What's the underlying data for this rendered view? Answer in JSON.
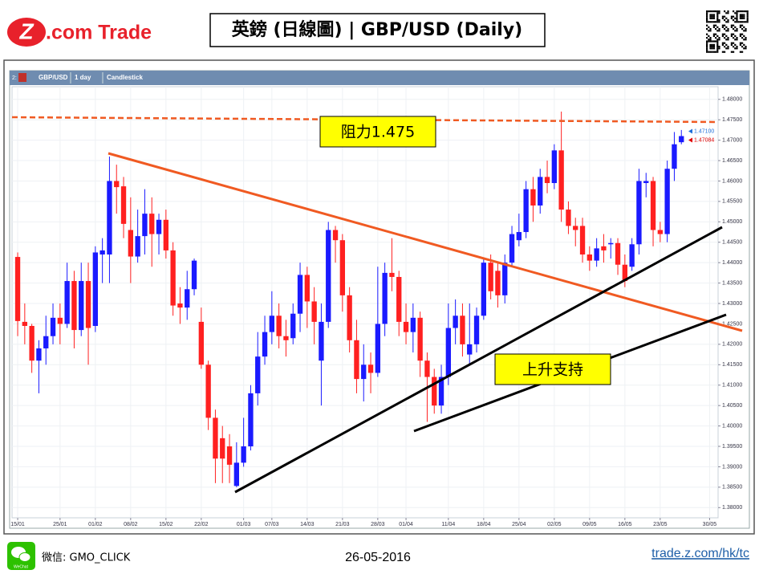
{
  "header": {
    "logo_mark": "Z",
    "logo_text": ".com Trade",
    "title": "英鎊 (日線圖) | GBP/USD (Daily)"
  },
  "chart_data": {
    "type": "candlestick",
    "toolbar": {
      "index": "2:",
      "symbol": "GBP/USD",
      "interval": "1 day",
      "style": "Candlestick"
    },
    "up_color": "#1a1aff",
    "down_color": "#ff2020",
    "grid": true,
    "xlim": [
      -0.8,
      99.2
    ],
    "xticks": [
      {
        "value": 0,
        "label": "15/01"
      },
      {
        "value": 6,
        "label": "25/01"
      },
      {
        "value": 11,
        "label": "01/02"
      },
      {
        "value": 16,
        "label": "08/02"
      },
      {
        "value": 21,
        "label": "15/02"
      },
      {
        "value": 26,
        "label": "22/02"
      },
      {
        "value": 32,
        "label": "01/03"
      },
      {
        "value": 36,
        "label": "07/03"
      },
      {
        "value": 41,
        "label": "14/03"
      },
      {
        "value": 46,
        "label": "21/03"
      },
      {
        "value": 51,
        "label": "28/03"
      },
      {
        "value": 55,
        "label": "01/04"
      },
      {
        "value": 61,
        "label": "11/04"
      },
      {
        "value": 66,
        "label": "18/04"
      },
      {
        "value": 71,
        "label": "25/04"
      },
      {
        "value": 76,
        "label": "02/05"
      },
      {
        "value": 81,
        "label": "09/05"
      },
      {
        "value": 86,
        "label": "16/05"
      },
      {
        "value": 91,
        "label": "23/05"
      },
      {
        "value": 98,
        "label": "30/05"
      }
    ],
    "ylim": [
      1.3775,
      1.4831
    ],
    "yticks": [
      {
        "value": 1.38,
        "label": "1.38000"
      },
      {
        "value": 1.385,
        "label": "1.38500"
      },
      {
        "value": 1.39,
        "label": "1.39000"
      },
      {
        "value": 1.395,
        "label": "1.39500"
      },
      {
        "value": 1.4,
        "label": "1.40000"
      },
      {
        "value": 1.405,
        "label": "1.40500"
      },
      {
        "value": 1.41,
        "label": "1.41000"
      },
      {
        "value": 1.415,
        "label": "1.41500"
      },
      {
        "value": 1.42,
        "label": "1.42000"
      },
      {
        "value": 1.425,
        "label": "1.42500"
      },
      {
        "value": 1.43,
        "label": "1.43000"
      },
      {
        "value": 1.435,
        "label": "1.43500"
      },
      {
        "value": 1.44,
        "label": "1.44000"
      },
      {
        "value": 1.445,
        "label": "1.44500"
      },
      {
        "value": 1.45,
        "label": "1.45000"
      },
      {
        "value": 1.455,
        "label": "1.45500"
      },
      {
        "value": 1.46,
        "label": "1.46000"
      },
      {
        "value": 1.465,
        "label": "1.46500"
      },
      {
        "value": 1.47,
        "label": "1.47000"
      },
      {
        "value": 1.475,
        "label": "1.47500"
      },
      {
        "value": 1.48,
        "label": "1.48000"
      }
    ],
    "open": [
      1.4414,
      1.4255,
      1.4245,
      1.416,
      1.419,
      1.422,
      1.4265,
      1.425,
      1.4355,
      1.4235,
      1.4355,
      1.4245,
      1.442,
      1.442,
      1.46,
      1.4587,
      1.448,
      1.4415,
      1.4465,
      1.452,
      1.447,
      1.4505,
      1.443,
      1.43,
      1.429,
      1.4335,
      1.4255,
      1.415,
      1.402,
      1.397,
      1.395,
      1.3853,
      1.391,
      1.395,
      1.408,
      1.417,
      1.423,
      1.427,
      1.422,
      1.4215,
      1.4275,
      1.437,
      1.4305,
      1.416,
      1.4255,
      1.448,
      1.4455,
      1.432,
      1.421,
      1.4115,
      1.415,
      1.413,
      1.425,
      1.4375,
      1.4365,
      1.4255,
      1.423,
      1.4265,
      1.416,
      1.412,
      1.405,
      1.412,
      1.424,
      1.427,
      1.4175,
      1.42,
      1.427,
      1.44,
      1.438,
      1.432,
      1.44,
      1.4455,
      1.4475,
      1.458,
      1.454,
      1.461,
      1.4595,
      1.4675,
      1.453,
      1.449,
      1.449,
      1.442,
      1.4405,
      1.444,
      1.4445,
      1.4448,
      1.4395,
      1.439,
      1.4445,
      1.4595,
      1.46,
      1.448,
      1.447,
      1.463,
      1.4695
    ],
    "high": [
      1.4425,
      1.43,
      1.425,
      1.421,
      1.427,
      1.43,
      1.43,
      1.44,
      1.438,
      1.44,
      1.44,
      1.444,
      1.446,
      1.466,
      1.464,
      1.461,
      1.456,
      1.453,
      1.458,
      1.456,
      1.452,
      1.453,
      1.445,
      1.434,
      1.438,
      1.441,
      1.429,
      1.416,
      1.404,
      1.4,
      1.398,
      1.396,
      1.402,
      1.41,
      1.423,
      1.427,
      1.433,
      1.43,
      1.426,
      1.43,
      1.44,
      1.439,
      1.434,
      1.43,
      1.45,
      1.449,
      1.447,
      1.434,
      1.426,
      1.42,
      1.418,
      1.439,
      1.44,
      1.446,
      1.438,
      1.43,
      1.43,
      1.428,
      1.418,
      1.414,
      1.415,
      1.43,
      1.431,
      1.43,
      1.43,
      1.429,
      1.441,
      1.442,
      1.44,
      1.442,
      1.449,
      1.452,
      1.46,
      1.461,
      1.463,
      1.465,
      1.469,
      1.477,
      1.455,
      1.451,
      1.451,
      1.444,
      1.446,
      1.447,
      1.446,
      1.446,
      1.442,
      1.446,
      1.463,
      1.462,
      1.461,
      1.45,
      1.465,
      1.472,
      1.4725
    ],
    "low": [
      1.422,
      1.42,
      1.413,
      1.408,
      1.415,
      1.42,
      1.42,
      1.424,
      1.419,
      1.422,
      1.415,
      1.423,
      1.435,
      1.435,
      1.452,
      1.446,
      1.435,
      1.44,
      1.442,
      1.439,
      1.442,
      1.441,
      1.427,
      1.425,
      1.426,
      1.432,
      1.414,
      1.399,
      1.386,
      1.386,
      1.386,
      1.385,
      1.39,
      1.394,
      1.405,
      1.415,
      1.42,
      1.419,
      1.417,
      1.42,
      1.423,
      1.424,
      1.42,
      1.405,
      1.424,
      1.44,
      1.428,
      1.418,
      1.408,
      1.406,
      1.408,
      1.412,
      1.422,
      1.433,
      1.422,
      1.42,
      1.418,
      1.412,
      1.401,
      1.403,
      1.403,
      1.41,
      1.42,
      1.417,
      1.415,
      1.418,
      1.426,
      1.431,
      1.429,
      1.43,
      1.439,
      1.444,
      1.446,
      1.45,
      1.452,
      1.457,
      1.458,
      1.45,
      1.447,
      1.444,
      1.44,
      1.438,
      1.439,
      1.44,
      1.441,
      1.437,
      1.434,
      1.438,
      1.442,
      1.456,
      1.444,
      1.445,
      1.445,
      1.46,
      1.469
    ],
    "close": [
      1.4257,
      1.4245,
      1.416,
      1.419,
      1.422,
      1.4265,
      1.425,
      1.4355,
      1.4235,
      1.4355,
      1.424,
      1.4425,
      1.443,
      1.46,
      1.4585,
      1.4495,
      1.4415,
      1.4465,
      1.452,
      1.447,
      1.4505,
      1.443,
      1.4295,
      1.429,
      1.4335,
      1.4405,
      1.415,
      1.402,
      1.392,
      1.392,
      1.3905,
      1.391,
      1.395,
      1.408,
      1.417,
      1.423,
      1.427,
      1.422,
      1.421,
      1.4275,
      1.437,
      1.4305,
      1.4255,
      1.4255,
      1.448,
      1.4455,
      1.432,
      1.421,
      1.4115,
      1.415,
      1.413,
      1.425,
      1.4375,
      1.4365,
      1.4255,
      1.423,
      1.4265,
      1.416,
      1.412,
      1.405,
      1.412,
      1.424,
      1.427,
      1.42,
      1.42,
      1.427,
      1.44,
      1.433,
      1.432,
      1.44,
      1.447,
      1.4475,
      1.458,
      1.454,
      1.461,
      1.4595,
      1.4675,
      1.453,
      1.449,
      1.448,
      1.442,
      1.4405,
      1.4435,
      1.443,
      1.4448,
      1.4395,
      1.4355,
      1.4445,
      1.46,
      1.46,
      1.448,
      1.447,
      1.463,
      1.469,
      1.471
    ],
    "price_labels": [
      {
        "value": 1.471,
        "label": "1.47100",
        "color": "#1e6fd9"
      },
      {
        "value": 1.47084,
        "label": "1.47084",
        "color": "#e00000"
      }
    ],
    "annotations": {
      "resistance": "阻力1.475",
      "support": "上升支持"
    }
  },
  "footer": {
    "wechat_icon": "WeChat",
    "wechat_id": "微信: GMO_CLICK",
    "date": "26-05-2016",
    "url": "trade.z.com/hk/tc"
  }
}
